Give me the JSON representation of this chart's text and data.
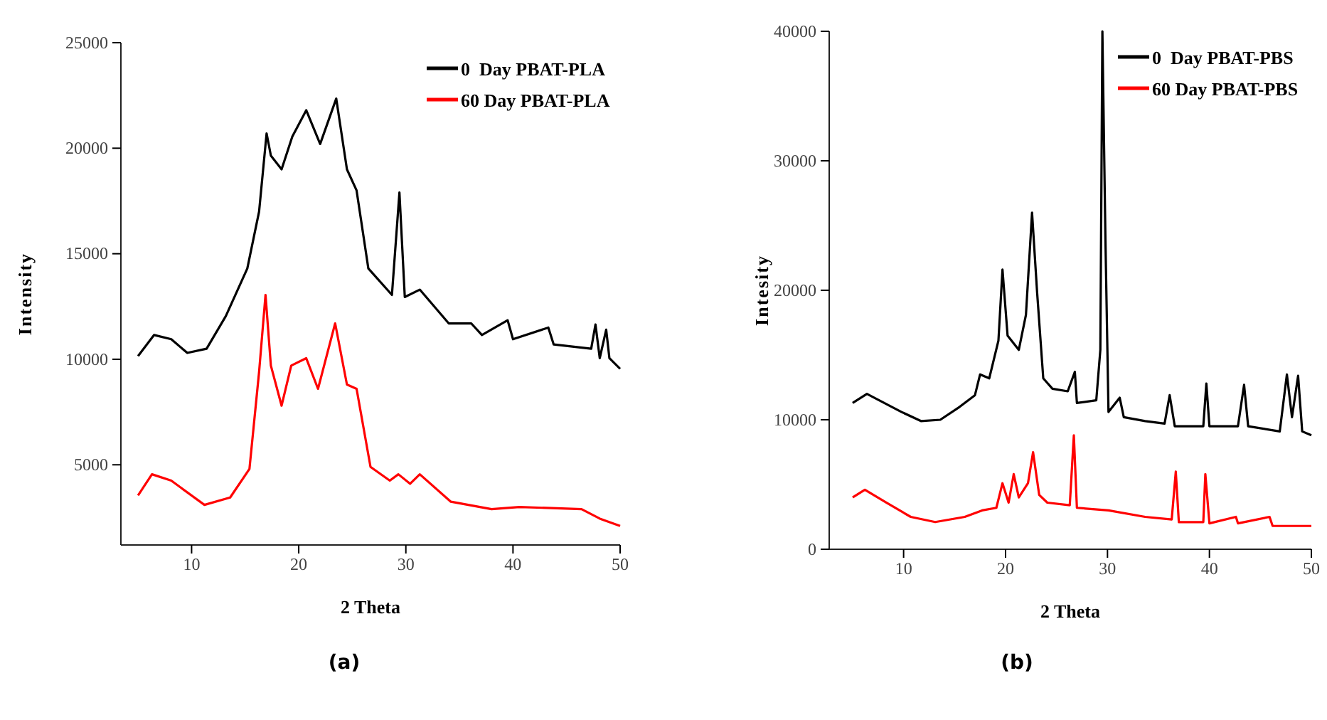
{
  "chart_data": [
    {
      "type": "line",
      "xlabel": "2 Theta",
      "ylabel": "Intensity",
      "annotations": [
        "(a)"
      ],
      "xlim": [
        3.4,
        50
      ],
      "ylim": [
        1200,
        25000
      ],
      "xticks": [
        10,
        20,
        30,
        40,
        50
      ],
      "yticks": [
        5000,
        10000,
        15000,
        20000,
        25000
      ],
      "legend": "top right",
      "grid": false,
      "marker": "none",
      "line_style": "solid",
      "series": [
        {
          "name": "0  Day PBAT-PLA",
          "color": "#000000",
          "x": [
            5,
            6.5,
            8.1,
            9.6,
            11.4,
            13.2,
            15.2,
            16.3,
            17,
            17.4,
            18.4,
            19.4,
            20.7,
            22,
            23.5,
            24.5,
            25.4,
            26.5,
            28.7,
            29.4,
            29.9,
            31.3,
            34,
            36.1,
            37.1,
            39.5,
            40,
            43.3,
            43.8,
            47.3,
            47.7,
            48.1,
            48.7,
            49,
            50
          ],
          "values": [
            10150,
            11150,
            10950,
            10300,
            10500,
            12050,
            14300,
            17000,
            20700,
            19650,
            19000,
            20550,
            21800,
            20200,
            22350,
            19000,
            18000,
            14300,
            13050,
            17900,
            12950,
            13300,
            11700,
            11700,
            11150,
            11850,
            10950,
            11500,
            10700,
            10500,
            11650,
            10050,
            11400,
            10050,
            9550
          ]
        },
        {
          "name": "60 Day PBAT-PLA",
          "color": "#ff0000",
          "x": [
            5,
            6.3,
            8.1,
            11.2,
            13.6,
            15.4,
            16.3,
            16.9,
            17.4,
            18.4,
            19.3,
            20.7,
            21.8,
            23.4,
            24.5,
            25.4,
            26.7,
            28.5,
            29.3,
            30.4,
            31.3,
            34.2,
            38,
            40.6,
            46.4,
            48.1,
            50
          ],
          "values": [
            3550,
            4550,
            4250,
            3100,
            3450,
            4800,
            9400,
            13050,
            9700,
            7800,
            9700,
            10050,
            8600,
            11700,
            8800,
            8600,
            4900,
            4250,
            4550,
            4100,
            4550,
            3250,
            2900,
            3000,
            2900,
            2450,
            2100
          ]
        }
      ]
    },
    {
      "type": "line",
      "xlabel": "2 Theta",
      "ylabel": "Intesity",
      "annotations": [
        "(b)"
      ],
      "xlim": [
        2.7,
        50
      ],
      "ylim": [
        0,
        40000
      ],
      "xticks": [
        10,
        20,
        30,
        40,
        50
      ],
      "yticks": [
        0,
        10000,
        20000,
        30000,
        40000
      ],
      "legend": "top right",
      "grid": false,
      "marker": "none",
      "line_style": "solid",
      "series": [
        {
          "name": "0  Day PBAT-PBS",
          "color": "#000000",
          "x": [
            5,
            6.4,
            9.8,
            11.7,
            13.6,
            15.5,
            17,
            17.5,
            18.4,
            19.3,
            19.7,
            20.2,
            21.3,
            22,
            22.6,
            23.1,
            23.7,
            24.6,
            26.1,
            26.8,
            27,
            28.9,
            29.3,
            29.5,
            29.8,
            30.1,
            31.2,
            31.6,
            33.7,
            35.6,
            36.1,
            36.6,
            39.4,
            39.7,
            40,
            42.8,
            43.4,
            43.8,
            46.9,
            47.6,
            48.1,
            48.7,
            49.1,
            50
          ],
          "values": [
            11300,
            12000,
            10600,
            9900,
            10000,
            11000,
            11900,
            13500,
            13200,
            16100,
            21600,
            16500,
            15400,
            18100,
            26000,
            19800,
            13200,
            12400,
            12200,
            13700,
            11300,
            11500,
            15400,
            40000,
            23900,
            10600,
            11700,
            10200,
            9900,
            9700,
            11900,
            9500,
            9500,
            12800,
            9500,
            9500,
            12700,
            9500,
            9100,
            13500,
            10200,
            13400,
            9100,
            8800
          ]
        },
        {
          "name": "60 Day PBAT-PBS",
          "color": "#ff0000",
          "x": [
            5,
            6.2,
            8.3,
            10.7,
            13.1,
            16,
            17.7,
            19.1,
            19.7,
            20.3,
            20.8,
            21.3,
            22.2,
            22.7,
            23.3,
            24.1,
            26.3,
            26.7,
            27,
            30.1,
            33.7,
            36.3,
            36.7,
            37,
            39.4,
            39.6,
            40,
            42.6,
            42.8,
            45.9,
            46.2,
            50
          ],
          "values": [
            4000,
            4600,
            3600,
            2500,
            2100,
            2500,
            3000,
            3200,
            5100,
            3600,
            5800,
            4000,
            5100,
            7500,
            4200,
            3600,
            3400,
            8800,
            3200,
            3000,
            2500,
            2300,
            6000,
            2100,
            2100,
            5800,
            2000,
            2500,
            2000,
            2500,
            1800,
            1800
          ]
        }
      ]
    }
  ]
}
